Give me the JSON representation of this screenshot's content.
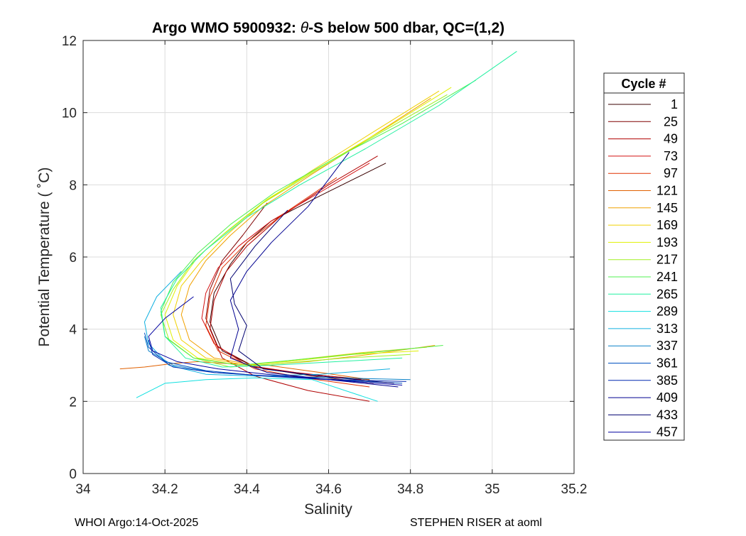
{
  "chart_data": {
    "type": "line",
    "title_prefix": "Argo WMO 5900932: ",
    "title_theta": "θ",
    "title_suffix": "-S below 500 dbar,  QC=(1,2)",
    "xlabel": "Salinity",
    "ylabel": "Potential Temperature ( ˚C)",
    "xlim": [
      34,
      35.2
    ],
    "ylim": [
      0,
      12
    ],
    "x_ticks": [
      34,
      34.2,
      34.4,
      34.6,
      34.8,
      35,
      35.2
    ],
    "x_tick_labels": [
      "34",
      "34.2",
      "34.4",
      "34.6",
      "34.8",
      "35",
      "35.2"
    ],
    "y_ticks": [
      0,
      2,
      4,
      6,
      8,
      10,
      12
    ],
    "y_tick_labels": [
      "0",
      "2",
      "4",
      "6",
      "8",
      "10",
      "12"
    ],
    "grid": true,
    "legend": {
      "title": "Cycle #",
      "position": "right-outside",
      "entries": [
        "1",
        "25",
        "49",
        "73",
        "97",
        "121",
        "145",
        "169",
        "193",
        "217",
        "241",
        "265",
        "289",
        "313",
        "337",
        "361",
        "385",
        "409",
        "433",
        "457"
      ],
      "colors": [
        "#3a0000",
        "#800000",
        "#b00000",
        "#d41010",
        "#e03000",
        "#e06000",
        "#f0a000",
        "#f0d000",
        "#e0f000",
        "#a0f020",
        "#50f050",
        "#20f0a0",
        "#10e0e0",
        "#10b0e0",
        "#0a80c8",
        "#0050c0",
        "#0028b0",
        "#000090",
        "#000070",
        "#0000a0"
      ]
    },
    "series": [
      {
        "name": "1",
        "color": "#3a0000",
        "x": [
          34.7,
          34.55,
          34.42,
          34.34,
          34.31,
          34.32,
          34.36,
          34.4,
          34.46,
          34.58,
          34.74
        ],
        "y": [
          2.6,
          2.75,
          2.95,
          3.4,
          4.2,
          5.0,
          5.8,
          6.4,
          7.0,
          7.7,
          8.6
        ]
      },
      {
        "name": "25",
        "color": "#800000",
        "x": [
          34.71,
          34.56,
          34.42,
          34.33,
          34.3,
          34.31,
          34.34,
          34.39,
          34.45
        ],
        "y": [
          2.5,
          2.7,
          2.95,
          3.5,
          4.3,
          5.1,
          5.9,
          6.6,
          7.5
        ]
      },
      {
        "name": "49",
        "color": "#b00000",
        "x": [
          34.7,
          34.55,
          34.42,
          34.34,
          34.31,
          34.32,
          34.35,
          34.4,
          34.48,
          34.6,
          34.72
        ],
        "y": [
          2.0,
          2.3,
          2.7,
          3.2,
          4.0,
          4.8,
          5.6,
          6.3,
          7.1,
          8.0,
          8.8
        ]
      },
      {
        "name": "73",
        "color": "#d41010",
        "x": [
          34.68,
          34.52,
          34.4,
          34.32,
          34.29,
          34.3,
          34.33,
          34.38,
          34.46,
          34.58,
          34.7
        ],
        "y": [
          2.6,
          2.8,
          3.0,
          3.6,
          4.3,
          5.0,
          5.7,
          6.3,
          7.0,
          7.8,
          8.6
        ]
      },
      {
        "name": "97",
        "color": "#e03000",
        "x": [
          34.7,
          34.54,
          34.42,
          34.33,
          34.3,
          34.31,
          34.34,
          34.4,
          34.49,
          34.62
        ],
        "y": [
          2.4,
          2.65,
          2.9,
          3.4,
          4.1,
          4.9,
          5.7,
          6.4,
          7.2,
          8.2
        ]
      },
      {
        "name": "121",
        "color": "#e06000",
        "x": [
          34.09,
          34.15,
          34.22,
          34.28,
          34.35,
          34.45,
          34.58,
          34.7
        ],
        "y": [
          2.9,
          2.95,
          3.05,
          3.1,
          3.05,
          3.0,
          2.8,
          2.6
        ]
      },
      {
        "name": "145",
        "color": "#f0a000",
        "x": [
          34.86,
          34.7,
          34.55,
          34.42,
          34.32,
          34.26,
          34.24,
          34.26,
          34.3,
          34.36,
          34.44,
          34.56,
          34.7,
          34.85
        ],
        "y": [
          3.55,
          3.3,
          3.1,
          3.0,
          3.2,
          3.7,
          4.4,
          5.2,
          5.9,
          6.6,
          7.4,
          8.3,
          9.3,
          10.4
        ]
      },
      {
        "name": "169",
        "color": "#f0d000",
        "x": [
          34.84,
          34.68,
          34.52,
          34.4,
          34.3,
          34.24,
          34.22,
          34.24,
          34.29,
          34.35,
          34.44,
          34.56,
          34.7,
          34.87
        ],
        "y": [
          3.5,
          3.35,
          3.15,
          3.0,
          3.2,
          3.7,
          4.4,
          5.2,
          5.9,
          6.6,
          7.5,
          8.4,
          9.4,
          10.6
        ]
      },
      {
        "name": "193",
        "color": "#e0f000",
        "x": [
          34.82,
          34.66,
          34.5,
          34.38,
          34.28,
          34.22,
          34.2,
          34.23,
          34.28,
          34.35,
          34.45,
          34.58,
          34.73,
          34.9
        ],
        "y": [
          3.4,
          3.3,
          3.1,
          3.0,
          3.2,
          3.7,
          4.4,
          5.2,
          6.0,
          6.7,
          7.6,
          8.5,
          9.5,
          10.7
        ]
      },
      {
        "name": "217",
        "color": "#a0f020",
        "x": [
          34.8,
          34.64,
          34.48,
          34.36,
          34.27,
          34.21,
          34.19,
          34.22,
          34.27,
          34.34,
          34.44,
          34.57,
          34.72,
          34.89
        ],
        "y": [
          3.3,
          3.2,
          3.05,
          2.95,
          3.2,
          3.7,
          4.4,
          5.1,
          5.9,
          6.6,
          7.5,
          8.4,
          9.4,
          10.5
        ]
      },
      {
        "name": "241",
        "color": "#50f050",
        "x": [
          34.88,
          34.7,
          34.52,
          34.38,
          34.27,
          34.2,
          34.19,
          34.22,
          34.28,
          34.36,
          34.47,
          34.61,
          34.78,
          34.96
        ],
        "y": [
          3.55,
          3.35,
          3.15,
          3.0,
          3.2,
          3.8,
          4.5,
          5.3,
          6.1,
          6.9,
          7.8,
          8.7,
          9.7,
          10.9
        ]
      },
      {
        "name": "265",
        "color": "#20f0a0",
        "x": [
          34.78,
          34.62,
          34.46,
          34.34,
          34.25,
          34.2,
          34.19,
          34.23,
          34.3,
          34.4,
          34.53,
          34.69,
          34.87,
          35.06
        ],
        "y": [
          3.2,
          3.1,
          3.0,
          2.95,
          3.2,
          3.8,
          4.6,
          5.4,
          6.2,
          7.1,
          8.0,
          9.0,
          10.2,
          11.7
        ]
      },
      {
        "name": "289",
        "color": "#10e0e0",
        "x": [
          34.13,
          34.2,
          34.3,
          34.42,
          34.56,
          34.72
        ],
        "y": [
          2.1,
          2.5,
          2.6,
          2.65,
          2.6,
          2.0
        ]
      },
      {
        "name": "313",
        "color": "#10b0e0",
        "x": [
          34.75,
          34.58,
          34.42,
          34.3,
          34.21,
          34.16,
          34.15,
          34.18,
          34.24
        ],
        "y": [
          2.9,
          2.75,
          2.7,
          2.75,
          3.0,
          3.6,
          4.2,
          4.9,
          5.6
        ]
      },
      {
        "name": "337",
        "color": "#0a80c8",
        "x": [
          34.8,
          34.62,
          34.45,
          34.32,
          34.22,
          34.16,
          34.15
        ],
        "y": [
          2.6,
          2.65,
          2.7,
          2.8,
          3.0,
          3.4,
          3.8
        ]
      },
      {
        "name": "361",
        "color": "#0050c0",
        "x": [
          34.78,
          34.6,
          34.44,
          34.3,
          34.2,
          34.16,
          34.15
        ],
        "y": [
          2.5,
          2.6,
          2.7,
          2.85,
          3.1,
          3.5,
          3.9
        ]
      },
      {
        "name": "385",
        "color": "#0028b0",
        "x": [
          34.79,
          34.62,
          34.46,
          34.32,
          34.22,
          34.17,
          34.16
        ],
        "y": [
          2.55,
          2.6,
          2.7,
          2.8,
          2.95,
          3.3,
          3.7
        ]
      },
      {
        "name": "409",
        "color": "#000090",
        "x": [
          34.77,
          34.6,
          34.45,
          34.36,
          34.38,
          34.36,
          34.4,
          34.46,
          34.55,
          34.65
        ],
        "y": [
          2.4,
          2.6,
          2.8,
          3.2,
          4.0,
          4.8,
          5.6,
          6.4,
          7.4,
          8.9
        ]
      },
      {
        "name": "433",
        "color": "#000070",
        "x": [
          34.76,
          34.58,
          34.44,
          34.38,
          34.4,
          34.37,
          34.36,
          34.42,
          34.5
        ],
        "y": [
          2.5,
          2.7,
          2.9,
          3.4,
          4.1,
          4.7,
          5.4,
          6.3,
          7.3
        ]
      },
      {
        "name": "457",
        "color": "#0000a0",
        "x": [
          34.78,
          34.6,
          34.45,
          34.33,
          34.23,
          34.17,
          34.16,
          34.2,
          34.27
        ],
        "y": [
          2.45,
          2.6,
          2.75,
          2.9,
          3.1,
          3.4,
          3.8,
          4.3,
          4.9
        ]
      }
    ]
  },
  "footer": {
    "left": "WHOI Argo:14-Oct-2025",
    "right": "STEPHEN RISER at aoml"
  }
}
